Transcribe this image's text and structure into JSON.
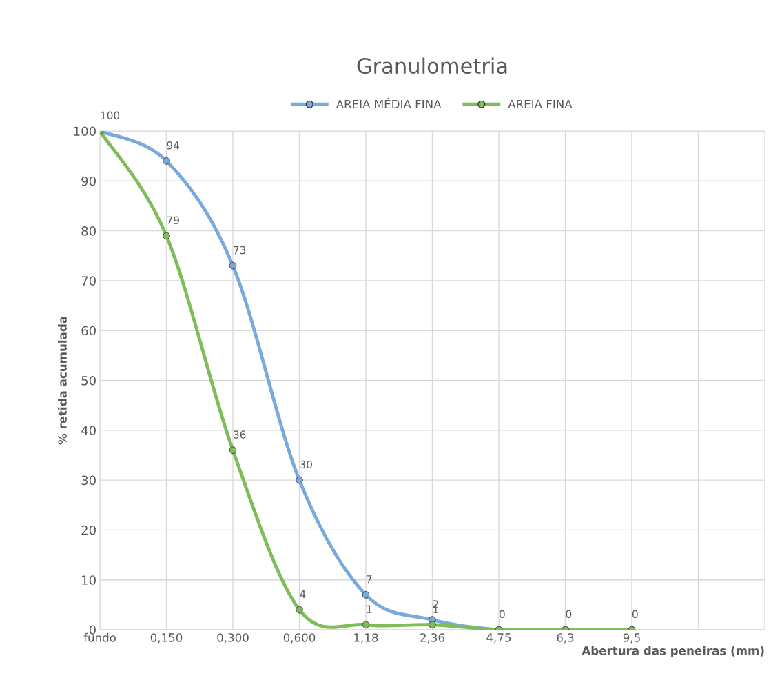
{
  "chart_data": {
    "type": "line",
    "title": "Granulometria",
    "xlabel": "Abertura das peneiras (mm)",
    "ylabel": "% retida acumulada",
    "categories": [
      "fundo",
      "0,150",
      "0,300",
      "0,600",
      "1,18",
      "2,36",
      "4,75",
      "6,3",
      "9,5",
      null
    ],
    "series": [
      {
        "name": "AREIA MÉDIA FINA",
        "color": "#7aaadc",
        "values": [
          100,
          94,
          73,
          30,
          7,
          2,
          0,
          0,
          0,
          null
        ],
        "value_labels": [
          "100",
          "94",
          "73",
          "30",
          "7",
          "2",
          "0",
          "0",
          "0",
          null
        ]
      },
      {
        "name": "AREIA FINA",
        "color": "#7fbc5a",
        "values": [
          100,
          79,
          36,
          4,
          1,
          1,
          0,
          0,
          0,
          null
        ],
        "value_labels": [
          null,
          "79",
          "36",
          "4",
          "1",
          "1",
          null,
          null,
          null,
          null
        ]
      }
    ],
    "ylim": [
      0,
      100
    ],
    "yticks": [
      0,
      10,
      20,
      30,
      40,
      50,
      60,
      70,
      80,
      90,
      100
    ],
    "grid": true,
    "legend": "top",
    "marker": "circle",
    "line_style": "solid"
  }
}
